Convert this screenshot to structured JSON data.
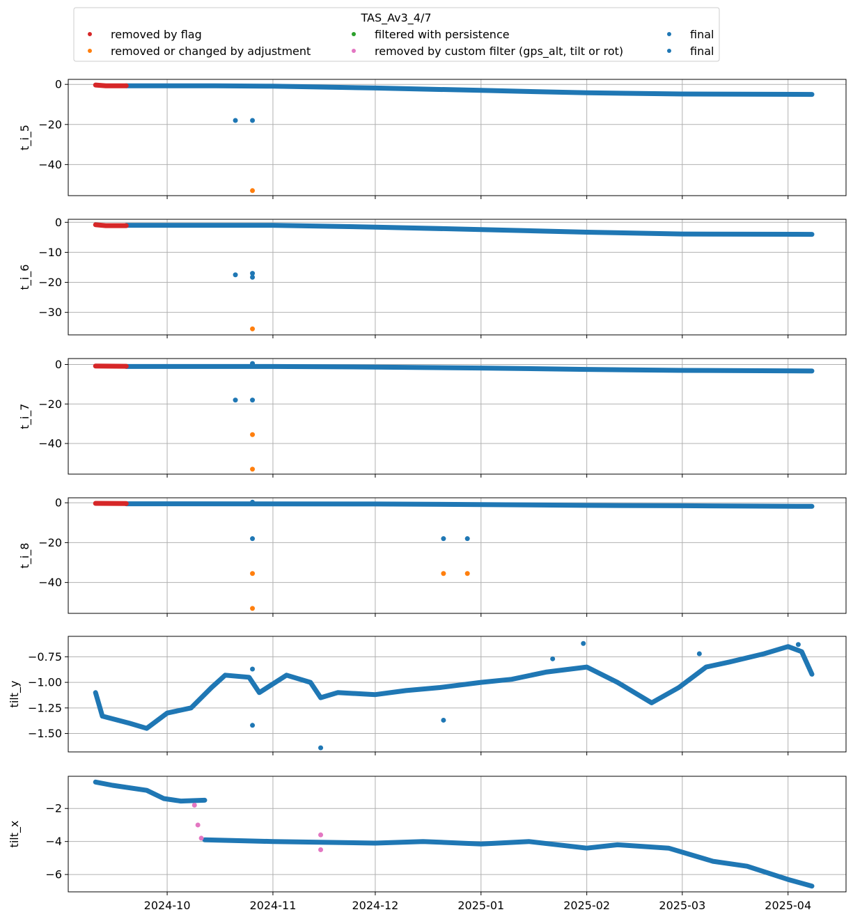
{
  "legend": {
    "title": "TAS_Av3_4/7",
    "entries": [
      {
        "label": "removed by flag",
        "color": "#d62728"
      },
      {
        "label": "removed or changed by adjustment",
        "color": "#ff7f0e"
      },
      {
        "label": "filtered with persistence",
        "color": "#2ca02c"
      },
      {
        "label": "removed by custom filter (gps_alt, tilt or rot)",
        "color": "#e377c2"
      },
      {
        "label": "final",
        "color": "#1f77b4"
      },
      {
        "label": "final",
        "color": "#1f77b4"
      }
    ]
  },
  "colors": {
    "flag": "#d62728",
    "adjust": "#ff7f0e",
    "persist": "#2ca02c",
    "custom": "#e377c2",
    "final": "#1f77b4",
    "grid": "#b0b0b0"
  },
  "chart_data": [
    {
      "type": "scatter",
      "ylabel": "t_i_5",
      "ylim": [
        -55.5,
        2.5
      ],
      "yticks": [
        0,
        -20,
        -40
      ],
      "grid": true,
      "xlim": [
        "2024-09-02",
        "2025-04-18"
      ],
      "xticks": [
        "2024-10",
        "2024-11",
        "2024-12",
        "2025-01",
        "2025-02",
        "2025-03",
        "2025-04"
      ],
      "lines": [
        {
          "series": "final",
          "points": [
            [
              "2024-09-19",
              -0.7
            ],
            [
              "2024-10-15",
              -0.7
            ],
            [
              "2024-11-01",
              -0.9
            ],
            [
              "2024-12-01",
              -1.8
            ],
            [
              "2025-01-01",
              -3.0
            ],
            [
              "2025-02-01",
              -4.2
            ],
            [
              "2025-03-01",
              -4.8
            ],
            [
              "2025-04-08",
              -5.0
            ]
          ]
        },
        {
          "series": "removed by flag",
          "points": [
            [
              "2024-09-10",
              -0.3
            ],
            [
              "2024-09-13",
              -0.7
            ],
            [
              "2024-09-19",
              -0.7
            ]
          ]
        }
      ],
      "points": [
        {
          "series": "final",
          "x": "2024-10-21",
          "y": -18.0
        },
        {
          "series": "final",
          "x": "2024-10-26",
          "y": -18.0
        },
        {
          "series": "removed or changed by adjustment",
          "x": "2024-10-26",
          "y": -53.0
        }
      ]
    },
    {
      "type": "scatter",
      "ylabel": "t_i_6",
      "ylim": [
        -37.5,
        1.0
      ],
      "yticks": [
        0,
        -10,
        -20,
        -30
      ],
      "grid": true,
      "xlim": [
        "2024-09-02",
        "2025-04-18"
      ],
      "xticks": [
        "2024-10",
        "2024-11",
        "2024-12",
        "2025-01",
        "2025-02",
        "2025-03",
        "2025-04"
      ],
      "lines": [
        {
          "series": "final",
          "points": [
            [
              "2024-09-19",
              -1.0
            ],
            [
              "2024-11-01",
              -1.0
            ],
            [
              "2024-12-01",
              -1.6
            ],
            [
              "2025-01-01",
              -2.4
            ],
            [
              "2025-02-01",
              -3.3
            ],
            [
              "2025-03-01",
              -3.9
            ],
            [
              "2025-04-08",
              -4.0
            ]
          ]
        },
        {
          "series": "removed by flag",
          "points": [
            [
              "2024-09-10",
              -0.8
            ],
            [
              "2024-09-13",
              -1.1
            ],
            [
              "2024-09-19",
              -1.1
            ]
          ]
        }
      ],
      "points": [
        {
          "series": "final",
          "x": "2024-10-21",
          "y": -17.5
        },
        {
          "series": "final",
          "x": "2024-10-26",
          "y": -17.0
        },
        {
          "series": "final",
          "x": "2024-10-26",
          "y": -18.3
        },
        {
          "series": "removed or changed by adjustment",
          "x": "2024-10-26",
          "y": -35.5
        }
      ]
    },
    {
      "type": "scatter",
      "ylabel": "t_i_7",
      "ylim": [
        -55.5,
        3.0
      ],
      "yticks": [
        0,
        -20,
        -40
      ],
      "grid": true,
      "xlim": [
        "2024-09-02",
        "2025-04-18"
      ],
      "xticks": [
        "2024-10",
        "2024-11",
        "2024-12",
        "2025-01",
        "2025-02",
        "2025-03",
        "2025-04"
      ],
      "lines": [
        {
          "series": "final",
          "points": [
            [
              "2024-09-19",
              -1.0
            ],
            [
              "2024-11-01",
              -1.0
            ],
            [
              "2024-12-01",
              -1.3
            ],
            [
              "2025-01-01",
              -1.8
            ],
            [
              "2025-02-01",
              -2.5
            ],
            [
              "2025-03-01",
              -3.0
            ],
            [
              "2025-04-08",
              -3.3
            ]
          ]
        },
        {
          "series": "removed by flag",
          "points": [
            [
              "2024-09-10",
              -0.8
            ],
            [
              "2024-09-19",
              -0.9
            ]
          ]
        }
      ],
      "points": [
        {
          "series": "final",
          "x": "2024-10-26",
          "y": 0.5
        },
        {
          "series": "final",
          "x": "2024-10-21",
          "y": -18.0
        },
        {
          "series": "final",
          "x": "2024-10-26",
          "y": -18.0
        },
        {
          "series": "removed or changed by adjustment",
          "x": "2024-10-26",
          "y": -35.5
        },
        {
          "series": "removed or changed by adjustment",
          "x": "2024-10-26",
          "y": -53.0
        }
      ]
    },
    {
      "type": "scatter",
      "ylabel": "t_i_8",
      "ylim": [
        -55.5,
        2.5
      ],
      "yticks": [
        0,
        -20,
        -40
      ],
      "grid": true,
      "xlim": [
        "2024-09-02",
        "2025-04-18"
      ],
      "xticks": [
        "2024-10",
        "2024-11",
        "2024-12",
        "2025-01",
        "2025-02",
        "2025-03",
        "2025-04"
      ],
      "lines": [
        {
          "series": "final",
          "points": [
            [
              "2024-09-19",
              -0.5
            ],
            [
              "2024-12-01",
              -0.6
            ],
            [
              "2025-01-01",
              -0.9
            ],
            [
              "2025-02-01",
              -1.3
            ],
            [
              "2025-03-01",
              -1.5
            ],
            [
              "2025-04-08",
              -1.8
            ]
          ]
        },
        {
          "series": "removed by flag",
          "points": [
            [
              "2024-09-10",
              -0.3
            ],
            [
              "2024-09-19",
              -0.4
            ]
          ]
        }
      ],
      "points": [
        {
          "series": "final",
          "x": "2024-10-26",
          "y": 0.3
        },
        {
          "series": "final",
          "x": "2024-10-26",
          "y": -18.0
        },
        {
          "series": "final",
          "x": "2024-12-21",
          "y": -18.0
        },
        {
          "series": "final",
          "x": "2024-12-28",
          "y": -18.0
        },
        {
          "series": "removed or changed by adjustment",
          "x": "2024-10-26",
          "y": -35.5
        },
        {
          "series": "removed or changed by adjustment",
          "x": "2024-12-21",
          "y": -35.5
        },
        {
          "series": "removed or changed by adjustment",
          "x": "2024-12-28",
          "y": -35.5
        },
        {
          "series": "removed or changed by adjustment",
          "x": "2024-10-26",
          "y": -53.0
        }
      ]
    },
    {
      "type": "scatter",
      "ylabel": "tilt_y",
      "ylim": [
        -1.68,
        -0.55
      ],
      "yticks": [
        -0.75,
        -1.0,
        -1.25,
        -1.5
      ],
      "ytick_labels": [
        "−0.75",
        "−1.00",
        "−1.25",
        "−1.50"
      ],
      "grid": true,
      "xlim": [
        "2024-09-02",
        "2025-04-18"
      ],
      "xticks": [
        "2024-10",
        "2024-11",
        "2024-12",
        "2025-01",
        "2025-02",
        "2025-03",
        "2025-04"
      ],
      "lines": [
        {
          "series": "final",
          "points": [
            [
              "2024-09-10",
              -1.1
            ],
            [
              "2024-09-12",
              -1.33
            ],
            [
              "2024-09-20",
              -1.4
            ],
            [
              "2024-09-25",
              -1.45
            ],
            [
              "2024-10-01",
              -1.3
            ],
            [
              "2024-10-08",
              -1.25
            ],
            [
              "2024-10-14",
              -1.05
            ],
            [
              "2024-10-18",
              -0.93
            ],
            [
              "2024-10-25",
              -0.95
            ],
            [
              "2024-10-28",
              -1.1
            ],
            [
              "2024-11-05",
              -0.93
            ],
            [
              "2024-11-12",
              -1.0
            ],
            [
              "2024-11-15",
              -1.15
            ],
            [
              "2024-11-20",
              -1.1
            ],
            [
              "2024-12-01",
              -1.12
            ],
            [
              "2024-12-10",
              -1.08
            ],
            [
              "2024-12-20",
              -1.05
            ],
            [
              "2025-01-01",
              -1.0
            ],
            [
              "2025-01-10",
              -0.97
            ],
            [
              "2025-01-20",
              -0.9
            ],
            [
              "2025-02-01",
              -0.85
            ],
            [
              "2025-02-10",
              -1.0
            ],
            [
              "2025-02-20",
              -1.2
            ],
            [
              "2025-02-28",
              -1.05
            ],
            [
              "2025-03-08",
              -0.85
            ],
            [
              "2025-03-15",
              -0.8
            ],
            [
              "2025-03-25",
              -0.72
            ],
            [
              "2025-04-01",
              -0.65
            ],
            [
              "2025-04-05",
              -0.7
            ],
            [
              "2025-04-08",
              -0.92
            ]
          ]
        }
      ],
      "points": [
        {
          "series": "final",
          "x": "2024-10-26",
          "y": -0.87
        },
        {
          "series": "final",
          "x": "2024-10-26",
          "y": -1.42
        },
        {
          "series": "final",
          "x": "2024-11-15",
          "y": -1.64
        },
        {
          "series": "final",
          "x": "2024-12-21",
          "y": -1.37
        },
        {
          "series": "final",
          "x": "2025-01-31",
          "y": -0.62
        },
        {
          "series": "final",
          "x": "2025-01-22",
          "y": -0.77
        },
        {
          "series": "final",
          "x": "2025-03-06",
          "y": -0.72
        },
        {
          "series": "final",
          "x": "2025-04-04",
          "y": -0.63
        }
      ]
    },
    {
      "type": "scatter",
      "ylabel": "tilt_x",
      "ylim": [
        -7.05,
        -0.05
      ],
      "yticks": [
        -2,
        -4,
        -6
      ],
      "grid": true,
      "xlim": [
        "2024-09-02",
        "2025-04-18"
      ],
      "xticks": [
        "2024-10",
        "2024-11",
        "2024-12",
        "2025-01",
        "2025-02",
        "2025-03",
        "2025-04"
      ],
      "lines": [
        {
          "series": "final",
          "points": [
            [
              "2024-09-10",
              -0.4
            ],
            [
              "2024-09-15",
              -0.6
            ],
            [
              "2024-09-25",
              -0.9
            ],
            [
              "2024-09-30",
              -1.4
            ],
            [
              "2024-10-05",
              -1.55
            ],
            [
              "2024-10-12",
              -1.5
            ]
          ]
        },
        {
          "series": "final",
          "points": [
            [
              "2024-10-12",
              -3.9
            ],
            [
              "2024-11-01",
              -4.0
            ],
            [
              "2024-12-01",
              -4.1
            ],
            [
              "2024-12-15",
              -4.0
            ],
            [
              "2025-01-01",
              -4.15
            ],
            [
              "2025-01-15",
              -4.0
            ],
            [
              "2025-02-01",
              -4.4
            ],
            [
              "2025-02-10",
              -4.2
            ],
            [
              "2025-02-25",
              -4.4
            ],
            [
              "2025-03-10",
              -5.2
            ],
            [
              "2025-03-20",
              -5.5
            ],
            [
              "2025-04-01",
              -6.3
            ],
            [
              "2025-04-08",
              -6.7
            ]
          ]
        }
      ],
      "points": [
        {
          "series": "removed by custom filter (gps_alt, tilt or rot)",
          "x": "2024-10-09",
          "y": -1.8
        },
        {
          "series": "removed by custom filter (gps_alt, tilt or rot)",
          "x": "2024-10-10",
          "y": -3.0
        },
        {
          "series": "removed by custom filter (gps_alt, tilt or rot)",
          "x": "2024-10-11",
          "y": -3.8
        },
        {
          "series": "removed by custom filter (gps_alt, tilt or rot)",
          "x": "2024-11-15",
          "y": -3.6
        },
        {
          "series": "removed by custom filter (gps_alt, tilt or rot)",
          "x": "2024-11-15",
          "y": -4.5
        }
      ]
    }
  ]
}
